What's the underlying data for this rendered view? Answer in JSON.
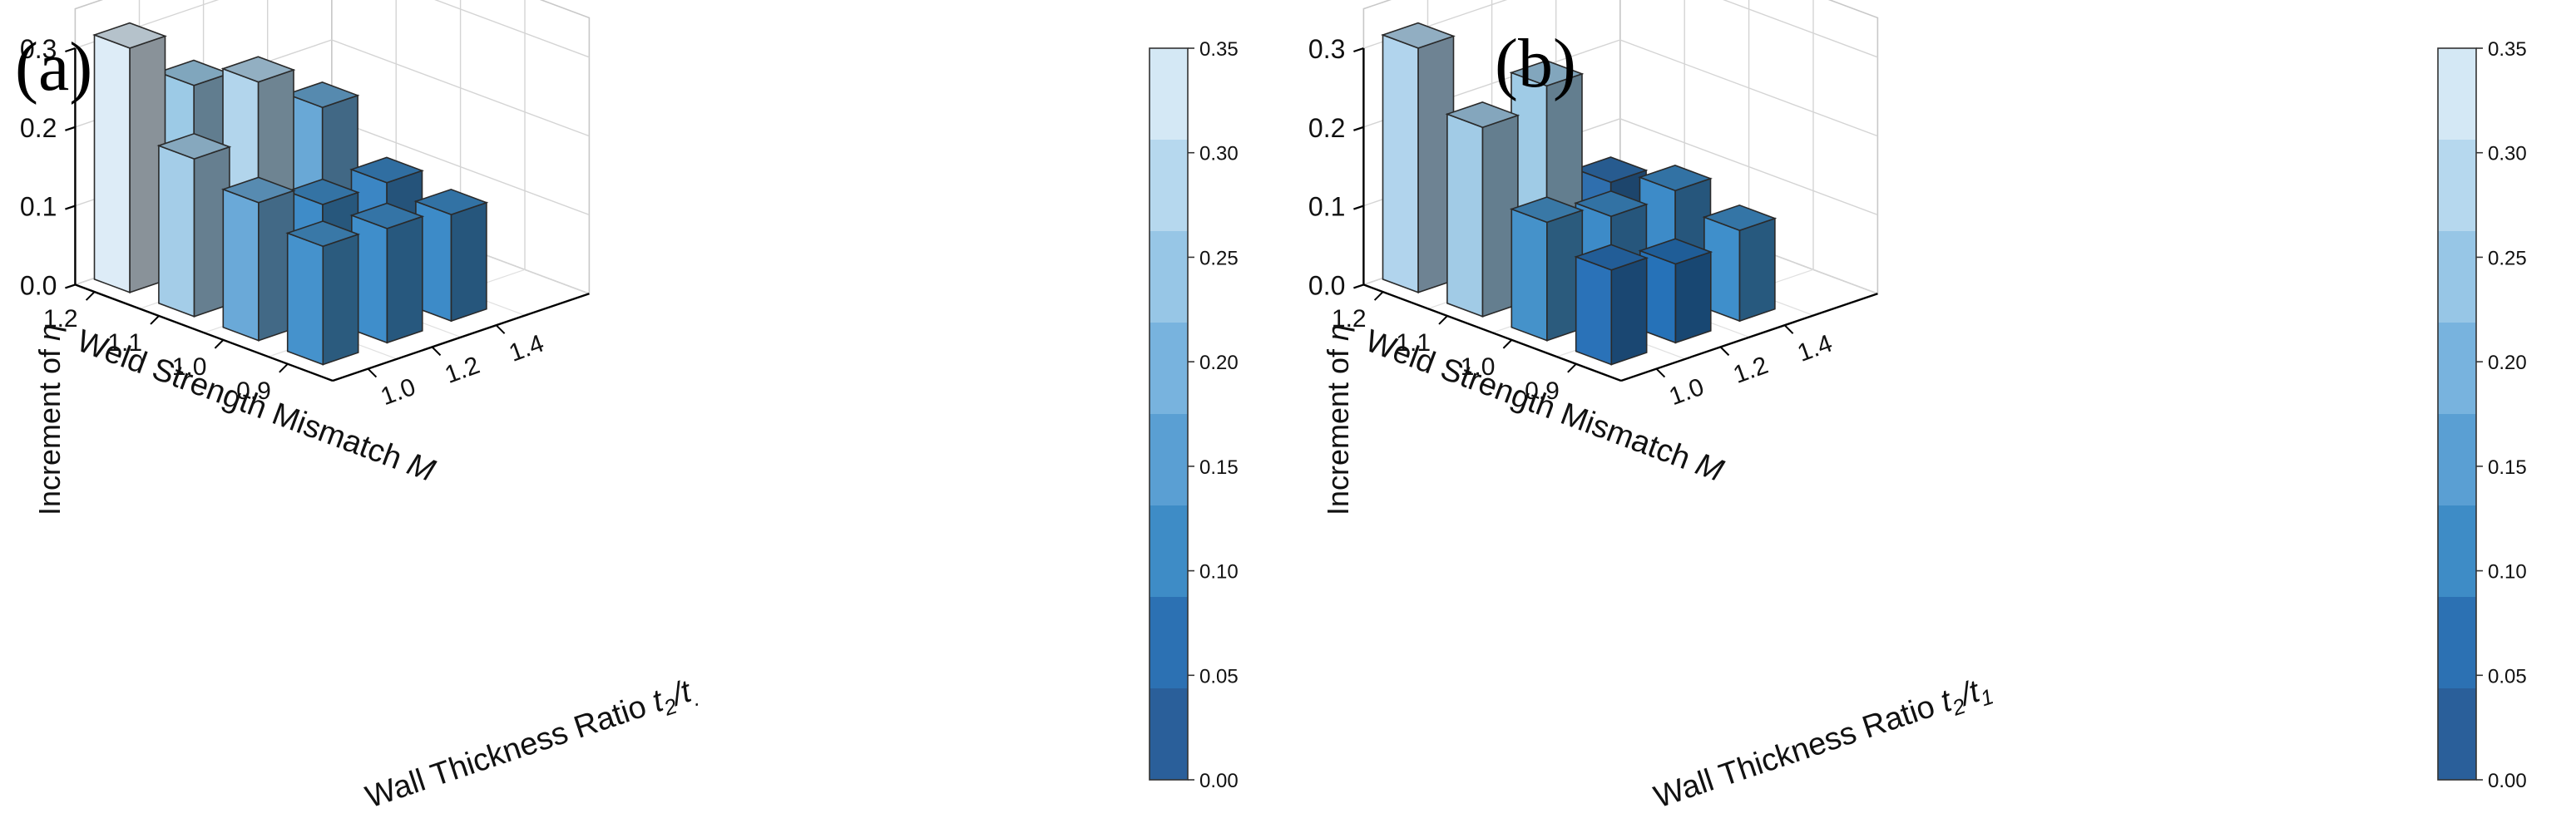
{
  "chart_data": [
    {
      "type": "bar3d",
      "panel_label": "(a)",
      "zlabel": "Increment of",
      "zlabel_symbol": "η",
      "xlabel": "Weld Strength Mismatch",
      "xlabel_symbol": "M",
      "ylabel": "Wall Thickness Ratio",
      "ylabel_symbol": "t",
      "ylabel_sub1": "2",
      "ylabel_slash": "/t",
      "ylabel_sub2": ".",
      "M_values": [
        "1.2",
        "1.1",
        "1.0",
        "0.9"
      ],
      "t_values": [
        "1.0",
        "1.2",
        "1.4"
      ],
      "zticks": [
        "0.0",
        "0.1",
        "0.2",
        "0.3"
      ],
      "zlim": [
        0,
        0.3
      ],
      "bars": [
        {
          "M": "1.2",
          "t": "1.0",
          "value": 0.31,
          "color": "#ddecf7"
        },
        {
          "M": "1.2",
          "t": "1.2",
          "value": 0.235,
          "color": "#9ccae6"
        },
        {
          "M": "1.1",
          "t": "1.0",
          "value": 0.2,
          "color": "#a4cde8"
        },
        {
          "M": "1.1",
          "t": "1.2",
          "value": 0.27,
          "color": "#b2d5ec"
        },
        {
          "M": "1.1",
          "t": "1.4",
          "value": 0.21,
          "color": "#69a8d6"
        },
        {
          "M": "1.0",
          "t": "1.0",
          "value": 0.175,
          "color": "#6aa9d8"
        },
        {
          "M": "1.0",
          "t": "1.2",
          "value": 0.145,
          "color": "#3f8cc8"
        },
        {
          "M": "1.0",
          "t": "1.4",
          "value": 0.145,
          "color": "#3b86c4"
        },
        {
          "M": "0.9",
          "t": "1.0",
          "value": 0.15,
          "color": "#4592cc"
        },
        {
          "M": "0.9",
          "t": "1.2",
          "value": 0.145,
          "color": "#3f8ecb"
        },
        {
          "M": "0.9",
          "t": "1.4",
          "value": 0.135,
          "color": "#3d8bc8"
        }
      ],
      "colorbar": {
        "ticks": [
          "0.00",
          "0.05",
          "0.10",
          "0.15",
          "0.20",
          "0.25",
          "0.30",
          "0.35"
        ],
        "colors": [
          "#2a5f9a",
          "#2c71b3",
          "#3e8cc6",
          "#5a9fd3",
          "#78b3de",
          "#97c6e6",
          "#b6d8ee",
          "#d4e8f5"
        ]
      }
    },
    {
      "type": "bar3d",
      "panel_label": "(b)",
      "zlabel": "Increment of",
      "zlabel_symbol": "η",
      "xlabel": "Weld Strength Mismatch",
      "xlabel_symbol": "M",
      "ylabel": "Wall Thickness Ratio",
      "ylabel_symbol": "t",
      "ylabel_sub1": "2",
      "ylabel_slash": "/t",
      "ylabel_sub2": "1",
      "M_values": [
        "1.2",
        "1.1",
        "1.0",
        "0.9"
      ],
      "t_values": [
        "1.0",
        "1.2",
        "1.4"
      ],
      "zticks": [
        "0.0",
        "0.1",
        "0.2",
        "0.3"
      ],
      "zlim": [
        0,
        0.3
      ],
      "bars": [
        {
          "M": "1.2",
          "t": "1.0",
          "value": 0.31,
          "color": "#b1d4ed"
        },
        {
          "M": "1.2",
          "t": "1.2",
          "value": 0.165,
          "color": "#4e8fc6"
        },
        {
          "M": "1.1",
          "t": "1.0",
          "value": 0.24,
          "color": "#a1cbe6"
        },
        {
          "M": "1.1",
          "t": "1.2",
          "value": 0.265,
          "color": "#9fcbe6"
        },
        {
          "M": "1.1",
          "t": "1.4",
          "value": 0.115,
          "color": "#2f6fae"
        },
        {
          "M": "1.0",
          "t": "1.0",
          "value": 0.15,
          "color": "#4592ca"
        },
        {
          "M": "1.0",
          "t": "1.2",
          "value": 0.13,
          "color": "#3d8bc8"
        },
        {
          "M": "1.0",
          "t": "1.4",
          "value": 0.135,
          "color": "#3d8bc8"
        },
        {
          "M": "0.9",
          "t": "1.0",
          "value": 0.12,
          "color": "#2a72b8"
        },
        {
          "M": "0.9",
          "t": "1.2",
          "value": 0.1,
          "color": "#2672b8"
        },
        {
          "M": "0.9",
          "t": "1.4",
          "value": 0.115,
          "color": "#3f8fcb"
        }
      ],
      "colorbar": {
        "ticks": [
          "0.00",
          "0.05",
          "0.10",
          "0.15",
          "0.20",
          "0.25",
          "0.30",
          "0.35"
        ],
        "colors": [
          "#2a5f9a",
          "#2c71b3",
          "#3e8cc6",
          "#5a9fd3",
          "#78b3de",
          "#97c6e6",
          "#b6d8ee",
          "#d4e8f5"
        ]
      }
    }
  ]
}
